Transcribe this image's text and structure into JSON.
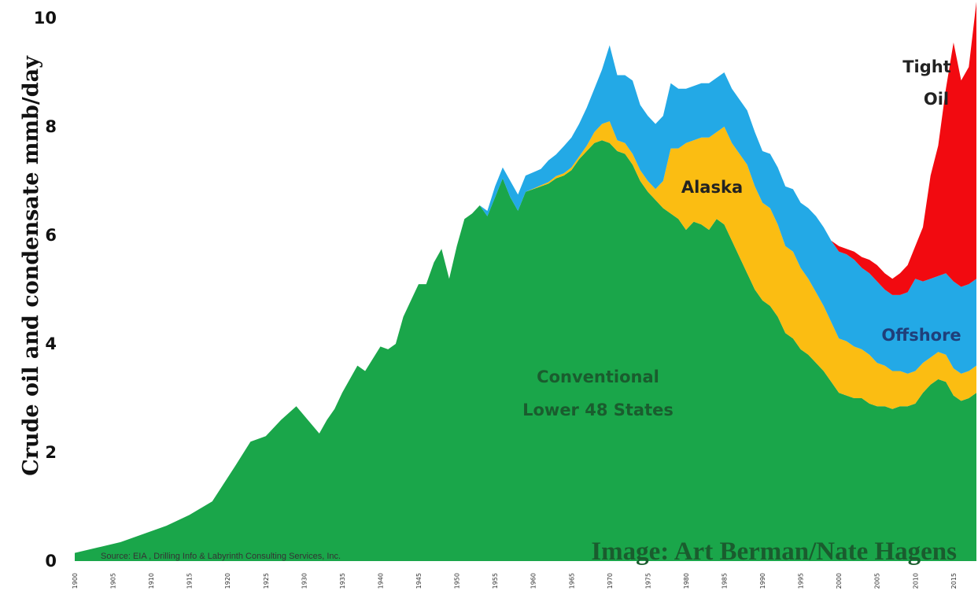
{
  "chart_data": {
    "type": "area",
    "stacked": true,
    "ylabel": "Crude oil and condensate mmb/day",
    "xlabel": "",
    "ylim": [
      0,
      10
    ],
    "yticks": [
      "0",
      "2",
      "4",
      "6",
      "8",
      "10"
    ],
    "xticks": [
      "1900",
      "1905",
      "1910",
      "1915",
      "1920",
      "1925",
      "1930",
      "1935",
      "1940",
      "1945",
      "1950",
      "1955",
      "1960",
      "1965",
      "1970",
      "1975",
      "1980",
      "1985",
      "1990",
      "1995",
      "2000",
      "2005",
      "2010",
      "2015"
    ],
    "grid": false,
    "years": [
      1900,
      1903,
      1906,
      1909,
      1912,
      1915,
      1918,
      1921,
      1923,
      1925,
      1927,
      1929,
      1932,
      1933,
      1934,
      1935,
      1937,
      1938,
      1940,
      1941,
      1942,
      1943,
      1944,
      1945,
      1946,
      1947,
      1948,
      1949,
      1950,
      1951,
      1952,
      1953,
      1954,
      1955,
      1956,
      1957,
      1958,
      1959,
      1960,
      1961,
      1962,
      1963,
      1964,
      1965,
      1966,
      1967,
      1968,
      1969,
      1970,
      1971,
      1972,
      1973,
      1974,
      1975,
      1976,
      1977,
      1978,
      1979,
      1980,
      1981,
      1982,
      1983,
      1984,
      1985,
      1986,
      1987,
      1988,
      1989,
      1990,
      1991,
      1992,
      1993,
      1994,
      1995,
      1996,
      1997,
      1998,
      1999,
      2000,
      2001,
      2002,
      2003,
      2004,
      2005,
      2006,
      2007,
      2008,
      2009,
      2010,
      2011,
      2012,
      2013,
      2014,
      2015,
      2016,
      2017,
      2018
    ],
    "series": [
      {
        "name": "Conventional Lower 48 States",
        "color": "#1aa64a",
        "values": [
          0.15,
          0.25,
          0.35,
          0.5,
          0.65,
          0.85,
          1.1,
          1.75,
          2.2,
          2.3,
          2.6,
          2.85,
          2.35,
          2.6,
          2.8,
          3.1,
          3.6,
          3.5,
          3.95,
          3.9,
          4.0,
          4.5,
          4.8,
          5.1,
          5.1,
          5.5,
          5.75,
          5.2,
          5.8,
          6.3,
          6.4,
          6.55,
          6.35,
          6.7,
          7.05,
          6.7,
          6.45,
          6.8,
          6.85,
          6.9,
          6.95,
          7.05,
          7.1,
          7.2,
          7.4,
          7.55,
          7.7,
          7.75,
          7.7,
          7.55,
          7.5,
          7.3,
          7.0,
          6.8,
          6.65,
          6.5,
          6.4,
          6.3,
          6.1,
          6.25,
          6.2,
          6.1,
          6.3,
          6.2,
          5.9,
          5.6,
          5.3,
          5.0,
          4.8,
          4.7,
          4.5,
          4.2,
          4.1,
          3.9,
          3.8,
          3.65,
          3.5,
          3.3,
          3.1,
          3.05,
          3.0,
          3.0,
          2.9,
          2.85,
          2.85,
          2.8,
          2.85,
          2.85,
          2.9,
          3.1,
          3.25,
          3.35,
          3.3,
          3.05,
          2.95,
          3.0,
          3.1
        ]
      },
      {
        "name": "Alaska",
        "color": "#fbbd12",
        "values": [
          0,
          0,
          0,
          0,
          0,
          0,
          0,
          0,
          0,
          0,
          0,
          0,
          0,
          0,
          0,
          0,
          0,
          0,
          0,
          0,
          0,
          0,
          0,
          0,
          0,
          0,
          0,
          0,
          0,
          0,
          0,
          0,
          0,
          0,
          0,
          0,
          0,
          0,
          0.01,
          0.02,
          0.03,
          0.04,
          0.04,
          0.05,
          0.05,
          0.1,
          0.2,
          0.3,
          0.4,
          0.2,
          0.2,
          0.2,
          0.2,
          0.2,
          0.2,
          0.5,
          1.2,
          1.3,
          1.6,
          1.5,
          1.6,
          1.7,
          1.6,
          1.8,
          1.8,
          1.9,
          2.0,
          1.9,
          1.8,
          1.8,
          1.7,
          1.6,
          1.6,
          1.5,
          1.4,
          1.3,
          1.2,
          1.1,
          1.0,
          1.0,
          0.95,
          0.9,
          0.9,
          0.8,
          0.75,
          0.7,
          0.65,
          0.6,
          0.6,
          0.55,
          0.5,
          0.5,
          0.5,
          0.5,
          0.5,
          0.5,
          0.5
        ]
      },
      {
        "name": "Offshore",
        "color": "#23a9e6",
        "values": [
          0,
          0,
          0,
          0,
          0,
          0,
          0,
          0,
          0,
          0,
          0,
          0,
          0,
          0,
          0,
          0,
          0,
          0,
          0,
          0,
          0,
          0,
          0,
          0,
          0,
          0,
          0,
          0,
          0,
          0,
          0,
          0,
          0.1,
          0.2,
          0.2,
          0.3,
          0.3,
          0.3,
          0.3,
          0.3,
          0.4,
          0.4,
          0.5,
          0.55,
          0.6,
          0.7,
          0.8,
          1.0,
          1.4,
          1.2,
          1.25,
          1.35,
          1.2,
          1.2,
          1.2,
          1.2,
          1.2,
          1.1,
          1.0,
          1.0,
          1.0,
          1.0,
          1.0,
          1.0,
          1.0,
          1.0,
          1.0,
          1.0,
          0.95,
          1.0,
          1.05,
          1.1,
          1.15,
          1.2,
          1.3,
          1.4,
          1.45,
          1.5,
          1.6,
          1.6,
          1.6,
          1.5,
          1.5,
          1.5,
          1.4,
          1.4,
          1.4,
          1.5,
          1.7,
          1.5,
          1.45,
          1.4,
          1.5,
          1.6,
          1.6,
          1.6,
          1.6
        ]
      },
      {
        "name": "Tight Oil",
        "color": "#f20a10",
        "values": [
          0,
          0,
          0,
          0,
          0,
          0,
          0,
          0,
          0,
          0,
          0,
          0,
          0,
          0,
          0,
          0,
          0,
          0,
          0,
          0,
          0,
          0,
          0,
          0,
          0,
          0,
          0,
          0,
          0,
          0,
          0,
          0,
          0,
          0,
          0,
          0,
          0,
          0,
          0,
          0,
          0,
          0,
          0,
          0,
          0,
          0,
          0,
          0,
          0,
          0,
          0,
          0,
          0,
          0,
          0,
          0,
          0,
          0,
          0,
          0,
          0,
          0,
          0,
          0,
          0,
          0,
          0,
          0,
          0,
          0,
          0,
          0,
          0,
          0,
          0,
          0,
          0,
          0,
          0.1,
          0.1,
          0.15,
          0.2,
          0.25,
          0.3,
          0.3,
          0.3,
          0.4,
          0.5,
          0.6,
          1.0,
          1.9,
          2.4,
          3.4,
          4.4,
          3.8,
          4.0,
          5.1
        ]
      }
    ],
    "annotations": [
      {
        "text": "Conventional",
        "color": "#1a5c2e"
      },
      {
        "text": "Lower 48 States",
        "color": "#1a5c2e"
      },
      {
        "text": "Alaska",
        "color": "#222222"
      },
      {
        "text": "Offshore",
        "color": "#1f3f7a"
      },
      {
        "text": "Tight",
        "color": "#222222"
      },
      {
        "text": "Oil",
        "color": "#222222"
      }
    ],
    "source": "Source: EIA , Drilling Info & Labyrinth Consulting Services, Inc.",
    "credit": "Image: Art Berman/Nate Hagens"
  }
}
